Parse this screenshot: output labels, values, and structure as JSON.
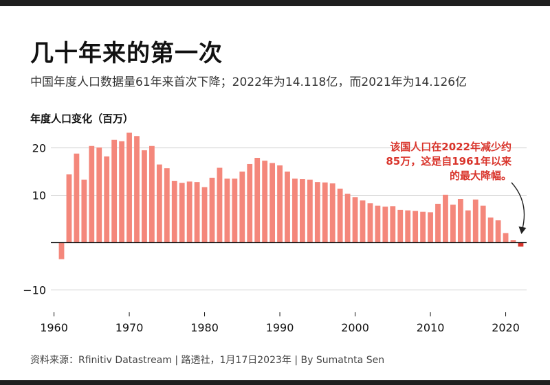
{
  "title": "几十年来的第一次",
  "subtitle": "中国年度人口数据量61年来首次下降；2022年为14.118亿，而2021年为14.126亿",
  "ylabel": "年度人口变化（百万）",
  "source": "资料来源：Rfinitiv Datastream | 路透社，1月17日2023年 | By Sumatnta Sen",
  "annotation": [
    "该国人口在2022年减少约",
    "85万，这是自1961年以来",
    "的最大降幅。"
  ],
  "colors": {
    "bar": "#f4877b",
    "highlight": "#d9342b",
    "grid": "#cccccc"
  },
  "chart_data": {
    "type": "bar",
    "title": "几十年来的第一次",
    "ylabel": "年度人口变化（百万）",
    "xlabel": "",
    "x_ticks": [
      1960,
      1970,
      1980,
      1990,
      2000,
      2010,
      2020
    ],
    "y_ticks": [
      -10,
      10,
      20
    ],
    "ylim": [
      -12,
      25
    ],
    "xlim": [
      1959.4,
      2023
    ],
    "grid": true,
    "highlight_year": 2022,
    "x": [
      1961,
      1962,
      1963,
      1964,
      1965,
      1966,
      1967,
      1968,
      1969,
      1970,
      1971,
      1972,
      1973,
      1974,
      1975,
      1976,
      1977,
      1978,
      1979,
      1980,
      1981,
      1982,
      1983,
      1984,
      1985,
      1986,
      1987,
      1988,
      1989,
      1990,
      1991,
      1992,
      1993,
      1994,
      1995,
      1996,
      1997,
      1998,
      1999,
      2000,
      2001,
      2002,
      2003,
      2004,
      2005,
      2006,
      2007,
      2008,
      2009,
      2010,
      2011,
      2012,
      2013,
      2014,
      2015,
      2016,
      2017,
      2018,
      2019,
      2020,
      2021,
      2022
    ],
    "values": [
      -3.5,
      14.4,
      18.8,
      13.3,
      20.4,
      20.1,
      18.2,
      21.7,
      21.4,
      23.2,
      22.5,
      19.5,
      20.4,
      16.5,
      15.7,
      13.0,
      12.6,
      12.9,
      12.8,
      11.7,
      13.7,
      15.8,
      13.5,
      13.5,
      15.0,
      16.6,
      17.9,
      17.3,
      16.8,
      16.3,
      15.0,
      13.5,
      13.4,
      13.3,
      12.8,
      12.7,
      12.5,
      11.4,
      10.3,
      9.6,
      8.9,
      8.3,
      7.8,
      7.6,
      7.7,
      6.9,
      6.8,
      6.7,
      6.5,
      6.4,
      8.2,
      10.1,
      8.0,
      9.2,
      6.8,
      9.1,
      7.8,
      5.3,
      4.7,
      2.0,
      0.5,
      -0.85
    ]
  }
}
